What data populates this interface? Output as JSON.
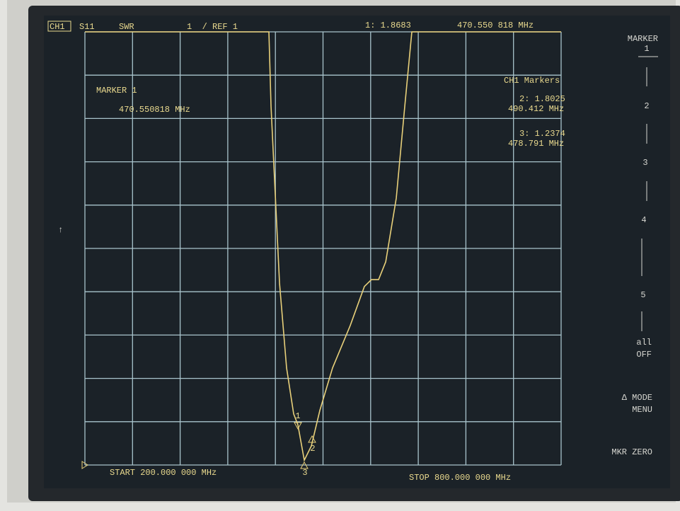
{
  "header": {
    "channel": "CH1",
    "parameter": "S11",
    "format": "SWR",
    "scale": "1  / REF 1",
    "active_marker_value": "1: 1.8683",
    "active_marker_freq": "470.550 818 MHz"
  },
  "marker_readout": {
    "title": "MARKER 1",
    "frequency": "470.550818 MHz"
  },
  "marker_list": {
    "title": "CH1 Markers",
    "items": [
      {
        "value": "2: 1.8025",
        "frequency": "490.412 MHz"
      },
      {
        "value": "3: 1.2374",
        "frequency": "478.791 MHz"
      }
    ]
  },
  "softkeys": {
    "title": "MARKER",
    "title_index": "1",
    "keys": [
      "2",
      "3",
      "4",
      "5"
    ],
    "all": "all",
    "off": "OFF",
    "mode": "Δ MODE",
    "menu": "MENU",
    "zero": "MKR ZERO"
  },
  "footer": {
    "start": "START 200.000 000 MHz",
    "stop": "STOP 800.000 000 MHz"
  },
  "scroll_indicator": "↑",
  "trace_markers": [
    "1",
    "2",
    "3"
  ],
  "trace": {
    "type": "line",
    "xlim": [
      200,
      800
    ],
    "ylim": [
      1,
      11
    ],
    "x": [
      200,
      431.8,
      434.5,
      445.2,
      454.1,
      463,
      468.3,
      476.4,
      485.3,
      496,
      512,
      534.3,
      552.1,
      561,
      570,
      579,
      592.3,
      603,
      611.9,
      800
    ],
    "y": [
      11,
      11,
      9.28,
      5.2,
      3.24,
      2.18,
      1.93,
      1.11,
      1.44,
      2.26,
      3.24,
      4.22,
      5.12,
      5.28,
      5.28,
      5.69,
      7.16,
      9.28,
      11,
      11
    ]
  }
}
